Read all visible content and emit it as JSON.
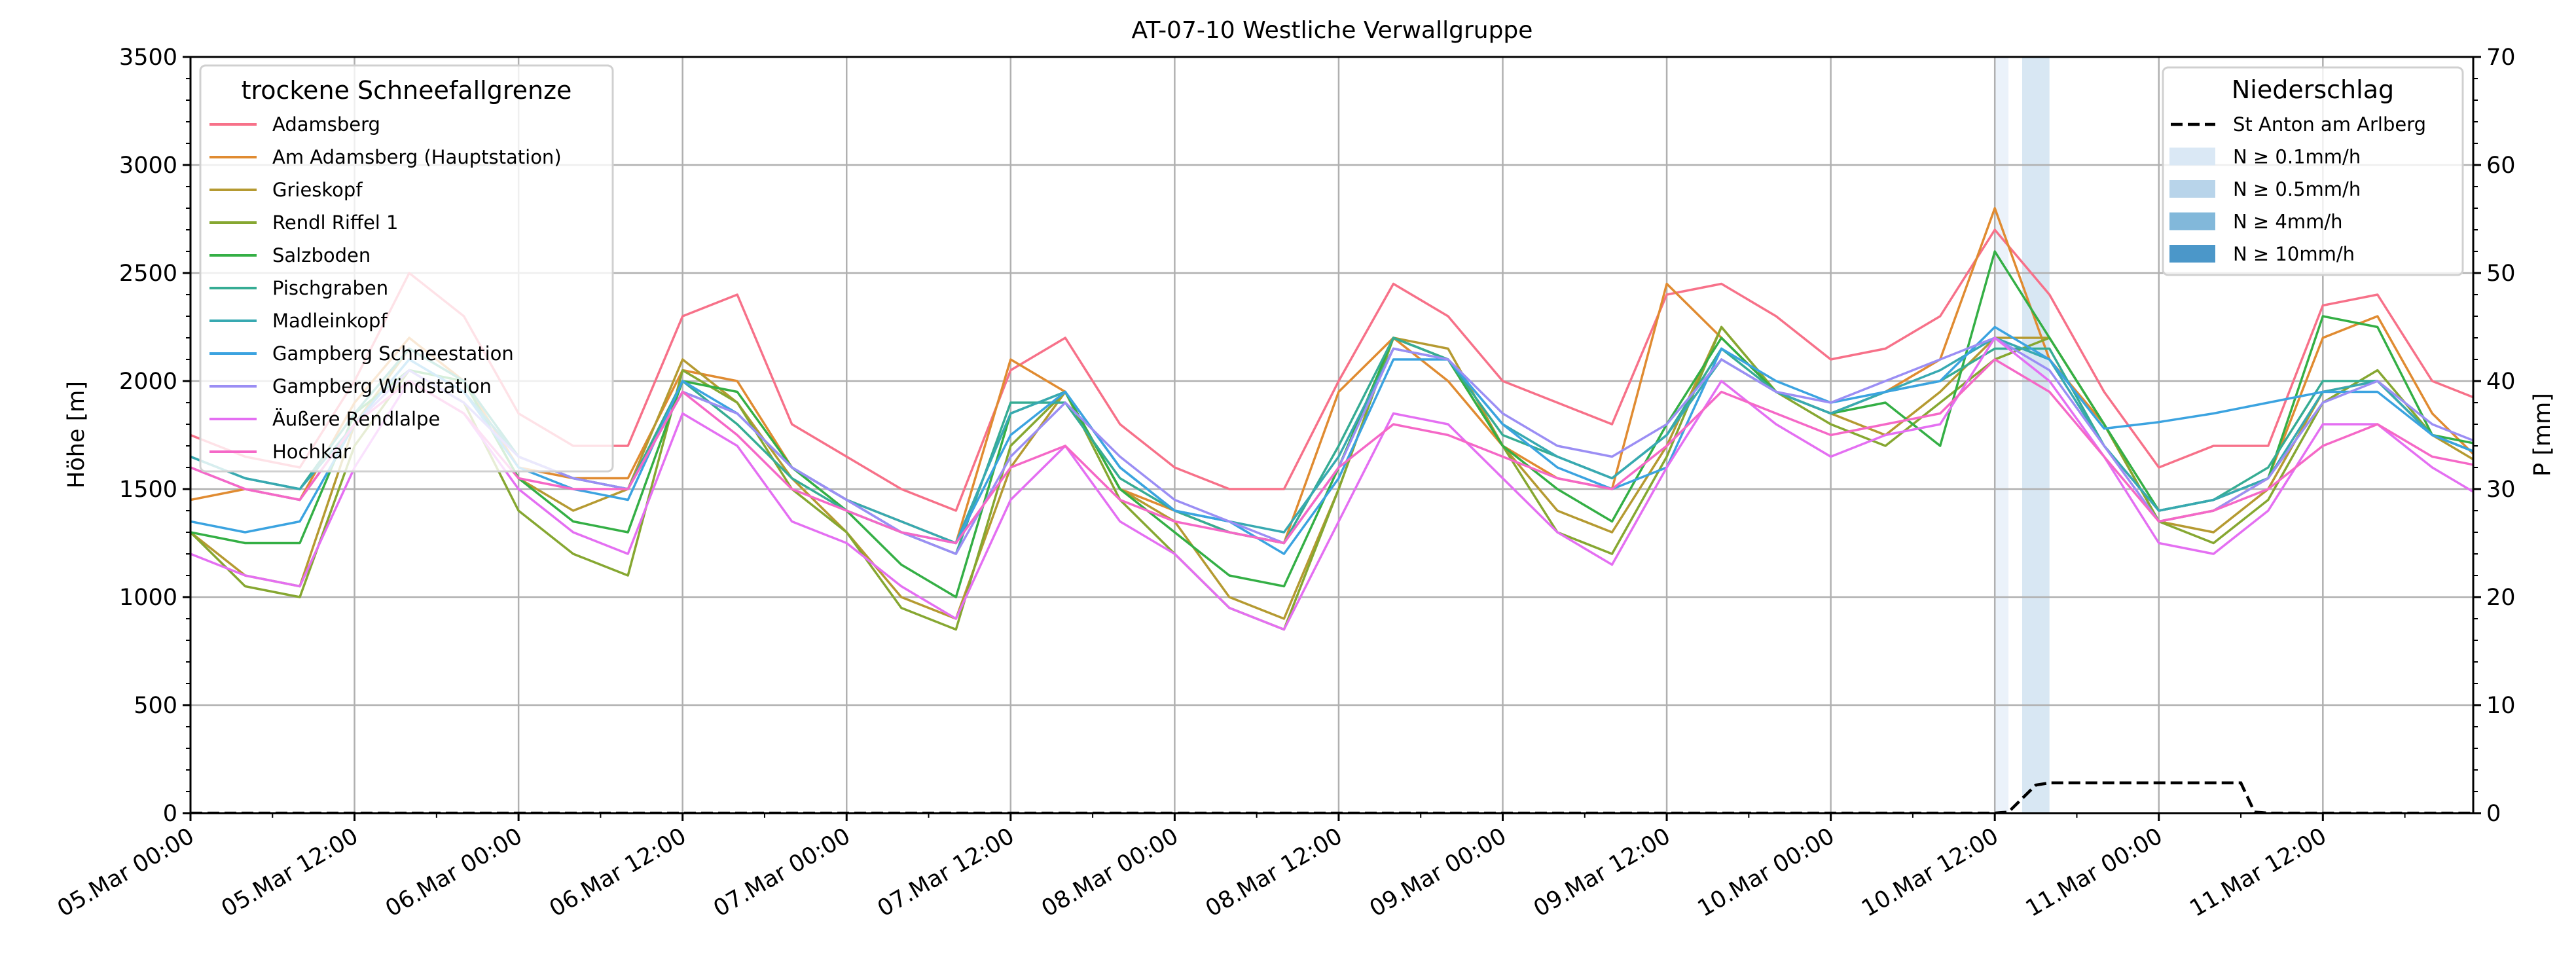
{
  "chart_data": {
    "type": "line",
    "title": "AT-07-10 Westliche Verwallgruppe",
    "ylabel": "Höhe [m]",
    "ylabel_right": "P [mm]",
    "xlabel": "",
    "xlim_hours": [
      0,
      167
    ],
    "ylim": [
      0,
      3500
    ],
    "ylim_right": [
      0,
      70
    ],
    "grid": true,
    "yticks": [
      0,
      500,
      1000,
      1500,
      2000,
      2500,
      3000,
      3500
    ],
    "yticks_right": [
      0,
      10,
      20,
      30,
      40,
      50,
      60,
      70
    ],
    "xticks": [
      {
        "hour": 0,
        "label": "05.Mar 00:00"
      },
      {
        "hour": 12,
        "label": "05.Mar 12:00"
      },
      {
        "hour": 24,
        "label": "06.Mar 00:00"
      },
      {
        "hour": 36,
        "label": "06.Mar 12:00"
      },
      {
        "hour": 48,
        "label": "07.Mar 00:00"
      },
      {
        "hour": 60,
        "label": "07.Mar 12:00"
      },
      {
        "hour": 72,
        "label": "08.Mar 00:00"
      },
      {
        "hour": 84,
        "label": "08.Mar 12:00"
      },
      {
        "hour": 96,
        "label": "09.Mar 00:00"
      },
      {
        "hour": 108,
        "label": "09.Mar 12:00"
      },
      {
        "hour": 120,
        "label": "10.Mar 00:00"
      },
      {
        "hour": 132,
        "label": "10.Mar 12:00"
      },
      {
        "hour": 144,
        "label": "11.Mar 00:00"
      },
      {
        "hour": 156,
        "label": "11.Mar 12:00"
      }
    ],
    "x_hours_step": 4,
    "legend_left": {
      "title": "trockene Schneefallgrenze",
      "placement": "upper-left"
    },
    "series": [
      {
        "name": "Adamsberg",
        "color": "#f77189",
        "values": [
          1750,
          1650,
          1600,
          2000,
          2500,
          2300,
          1850,
          1700,
          1700,
          2300,
          2400,
          1800,
          1650,
          1500,
          1400,
          2050,
          2200,
          1800,
          1600,
          1500,
          1500,
          2000,
          2450,
          2300,
          2000,
          1900,
          1800,
          2400,
          2450,
          2300,
          2100,
          2150,
          2300,
          2700,
          2400,
          1950,
          1600,
          1700,
          1700,
          2350,
          2400,
          2000,
          1900
        ]
      },
      {
        "name": "Am Adamsberg (Hauptstation)",
        "color": "#e08b31",
        "values": [
          1450,
          1500,
          1450,
          1900,
          2200,
          2000,
          1600,
          1550,
          1550,
          2050,
          2000,
          1600,
          1450,
          1350,
          1250,
          2100,
          1950,
          1500,
          1400,
          1300,
          1250,
          1950,
          2200,
          2000,
          1700,
          1550,
          1500,
          2450,
          2200,
          1950,
          1850,
          1950,
          2100,
          2800,
          2100,
          1800,
          1350,
          1400,
          1550,
          2200,
          2300,
          1850,
          1600
        ]
      },
      {
        "name": "Grieskopf",
        "color": "#b59a31",
        "values": [
          1300,
          1100,
          1050,
          1800,
          2150,
          2000,
          1550,
          1400,
          1500,
          2100,
          1900,
          1550,
          1300,
          1000,
          900,
          1600,
          1950,
          1500,
          1350,
          1000,
          900,
          1500,
          2200,
          2150,
          1700,
          1400,
          1300,
          1700,
          2250,
          1950,
          1850,
          1750,
          1950,
          2200,
          2200,
          1800,
          1350,
          1300,
          1500,
          1950,
          2000,
          1750,
          1600
        ]
      },
      {
        "name": "Rendl Riffel 1",
        "color": "#86a731",
        "values": [
          1300,
          1050,
          1000,
          1700,
          2050,
          1900,
          1400,
          1200,
          1100,
          2050,
          1900,
          1500,
          1300,
          950,
          850,
          1700,
          1950,
          1450,
          1200,
          950,
          850,
          1500,
          2200,
          2100,
          1700,
          1300,
          1200,
          1650,
          2250,
          1950,
          1800,
          1700,
          1900,
          2100,
          2200,
          1800,
          1350,
          1250,
          1450,
          1900,
          2050,
          1750,
          1650
        ]
      },
      {
        "name": "Salzboden",
        "color": "#34af45",
        "values": [
          1300,
          1250,
          1250,
          1850,
          2050,
          2000,
          1550,
          1350,
          1300,
          2000,
          1950,
          1600,
          1400,
          1150,
          1000,
          1850,
          1950,
          1500,
          1300,
          1100,
          1050,
          1600,
          2200,
          2100,
          1700,
          1500,
          1350,
          1800,
          2200,
          1950,
          1850,
          1900,
          1700,
          2600,
          2200,
          1800,
          1400,
          1450,
          1550,
          2300,
          2250,
          1750,
          1700
        ]
      },
      {
        "name": "Pischgraben",
        "color": "#36ac94",
        "values": [
          1650,
          1550,
          1500,
          1850,
          2150,
          2000,
          1650,
          1550,
          1500,
          2000,
          1800,
          1550,
          1400,
          1300,
          1200,
          1900,
          1900,
          1550,
          1400,
          1300,
          1250,
          1700,
          2200,
          2100,
          1750,
          1650,
          1550,
          1750,
          2150,
          1950,
          1850,
          1950,
          2000,
          2150,
          2150,
          1700,
          1400,
          1450,
          1600,
          2000,
          2000,
          1750,
          1650
        ]
      },
      {
        "name": "Madleinkopf",
        "color": "#38a9b1",
        "values": [
          1650,
          1550,
          1500,
          1800,
          2100,
          1950,
          1650,
          1550,
          1500,
          1950,
          1850,
          1600,
          1450,
          1350,
          1250,
          1850,
          1950,
          1600,
          1400,
          1350,
          1300,
          1650,
          2150,
          2100,
          1800,
          1650,
          1550,
          1750,
          2100,
          1950,
          1850,
          1950,
          2050,
          2200,
          2100,
          1700,
          1400,
          1450,
          1550,
          1950,
          2000,
          1750,
          1650
        ]
      },
      {
        "name": "Gampberg Schneestation",
        "color": "#3ba3e0",
        "values": [
          1350,
          1300,
          1350,
          1800,
          2100,
          1950,
          1600,
          1500,
          1450,
          2000,
          1850,
          1600,
          1450,
          1300,
          1250,
          1750,
          1950,
          1600,
          1400,
          1350,
          1200,
          1550,
          2100,
          2100,
          1800,
          1600,
          1500,
          1600,
          2150,
          2000,
          1900,
          1950,
          2000,
          2250,
          2100,
          1780,
          1810,
          1850,
          1900,
          1950,
          1950,
          1750,
          1650
        ]
      },
      {
        "name": "Gampberg Windstation",
        "color": "#9b8ef4",
        "values": [
          1600,
          1500,
          1450,
          1800,
          2050,
          1900,
          1650,
          1550,
          1500,
          1950,
          1850,
          1600,
          1450,
          1300,
          1200,
          1650,
          1900,
          1650,
          1450,
          1350,
          1250,
          1600,
          2150,
          2100,
          1850,
          1700,
          1650,
          1800,
          2100,
          1950,
          1900,
          2000,
          2100,
          2200,
          2050,
          1700,
          1350,
          1400,
          1550,
          1900,
          2000,
          1800,
          1700
        ]
      },
      {
        "name": "Äußere Rendlalpe",
        "color": "#e46ff2",
        "values": [
          1200,
          1100,
          1050,
          1600,
          2000,
          1850,
          1500,
          1300,
          1200,
          1850,
          1700,
          1350,
          1250,
          1050,
          900,
          1450,
          1700,
          1350,
          1200,
          950,
          850,
          1350,
          1850,
          1800,
          1550,
          1300,
          1150,
          1600,
          2000,
          1800,
          1650,
          1750,
          1800,
          2200,
          2000,
          1650,
          1250,
          1200,
          1400,
          1800,
          1800,
          1600,
          1450
        ]
      },
      {
        "name": "Hochkar",
        "color": "#f568c7",
        "values": [
          1600,
          1500,
          1450,
          1800,
          2000,
          1850,
          1550,
          1500,
          1500,
          1950,
          1750,
          1500,
          1400,
          1300,
          1250,
          1600,
          1700,
          1450,
          1350,
          1300,
          1250,
          1600,
          1800,
          1750,
          1650,
          1550,
          1500,
          1700,
          1950,
          1850,
          1750,
          1800,
          1850,
          2100,
          1950,
          1650,
          1350,
          1400,
          1500,
          1700,
          1800,
          1650,
          1600
        ]
      }
    ],
    "legend_right": {
      "title": "Niederschlag",
      "placement": "upper-right",
      "items": [
        {
          "label": "St Anton am Arlberg",
          "kind": "line",
          "color": "#000000"
        },
        {
          "label": "N ≥ 0.1mm/h",
          "kind": "patch",
          "color": "#dae8f5"
        },
        {
          "label": "N ≥ 0.5mm/h",
          "kind": "patch",
          "color": "#b8d4ea"
        },
        {
          "label": "N ≥ 4mm/h",
          "kind": "patch",
          "color": "#82b8da"
        },
        {
          "label": "N ≥ 10mm/h",
          "kind": "patch",
          "color": "#4b97c9"
        }
      ]
    },
    "precip_series": {
      "name": "St Anton am Arlberg",
      "hours": [
        0,
        132,
        133,
        135,
        136,
        150,
        151,
        152,
        167
      ],
      "values": [
        0,
        0,
        0.1,
        2.6,
        2.8,
        2.8,
        0.1,
        0,
        0
      ]
    },
    "precip_bands": [
      {
        "start_hour": 132,
        "end_hour": 133,
        "level": "N ≥ 0.1mm/h",
        "color": "#dae8f5"
      },
      {
        "start_hour": 134,
        "end_hour": 136,
        "level": "N ≥ 0.5mm/h",
        "color": "#b8d4ea"
      }
    ]
  }
}
